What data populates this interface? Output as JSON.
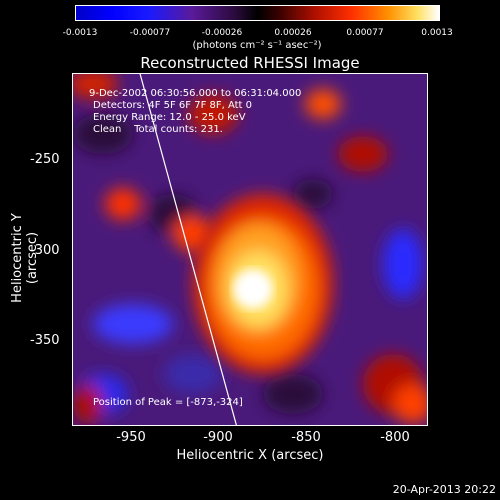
{
  "colorbar": {
    "ticks": [
      "-0.0013",
      "-0.00077",
      "-0.00026",
      "0.00026",
      "0.00077",
      "0.0013"
    ],
    "unit": "(photons cm⁻² s⁻¹ asec⁻²)"
  },
  "title": "Reconstructed RHESSI Image",
  "info": {
    "time": "9-Dec-2002 06:30:56.000 to 06:31:04.000",
    "detectors": "Detectors: 4F 5F 6F 7F 8F, Att 0",
    "energy": "Energy Range: 12.0 - 25.0 keV",
    "clean": "Clean    Total counts: 231.",
    "peak": "Position of Peak = [-873,-324]"
  },
  "axes": {
    "xlabel": "Heliocentric X (arcsec)",
    "ylabel": "Heliocentric Y (arcsec)",
    "xticks": [
      "-950",
      "-900",
      "-850",
      "-800"
    ],
    "yticks": [
      "-250",
      "-300",
      "-350"
    ]
  },
  "timestamp": "20-Apr-2013 20:22",
  "colors": {
    "background": "#000000",
    "foreground": "#ffffff"
  }
}
